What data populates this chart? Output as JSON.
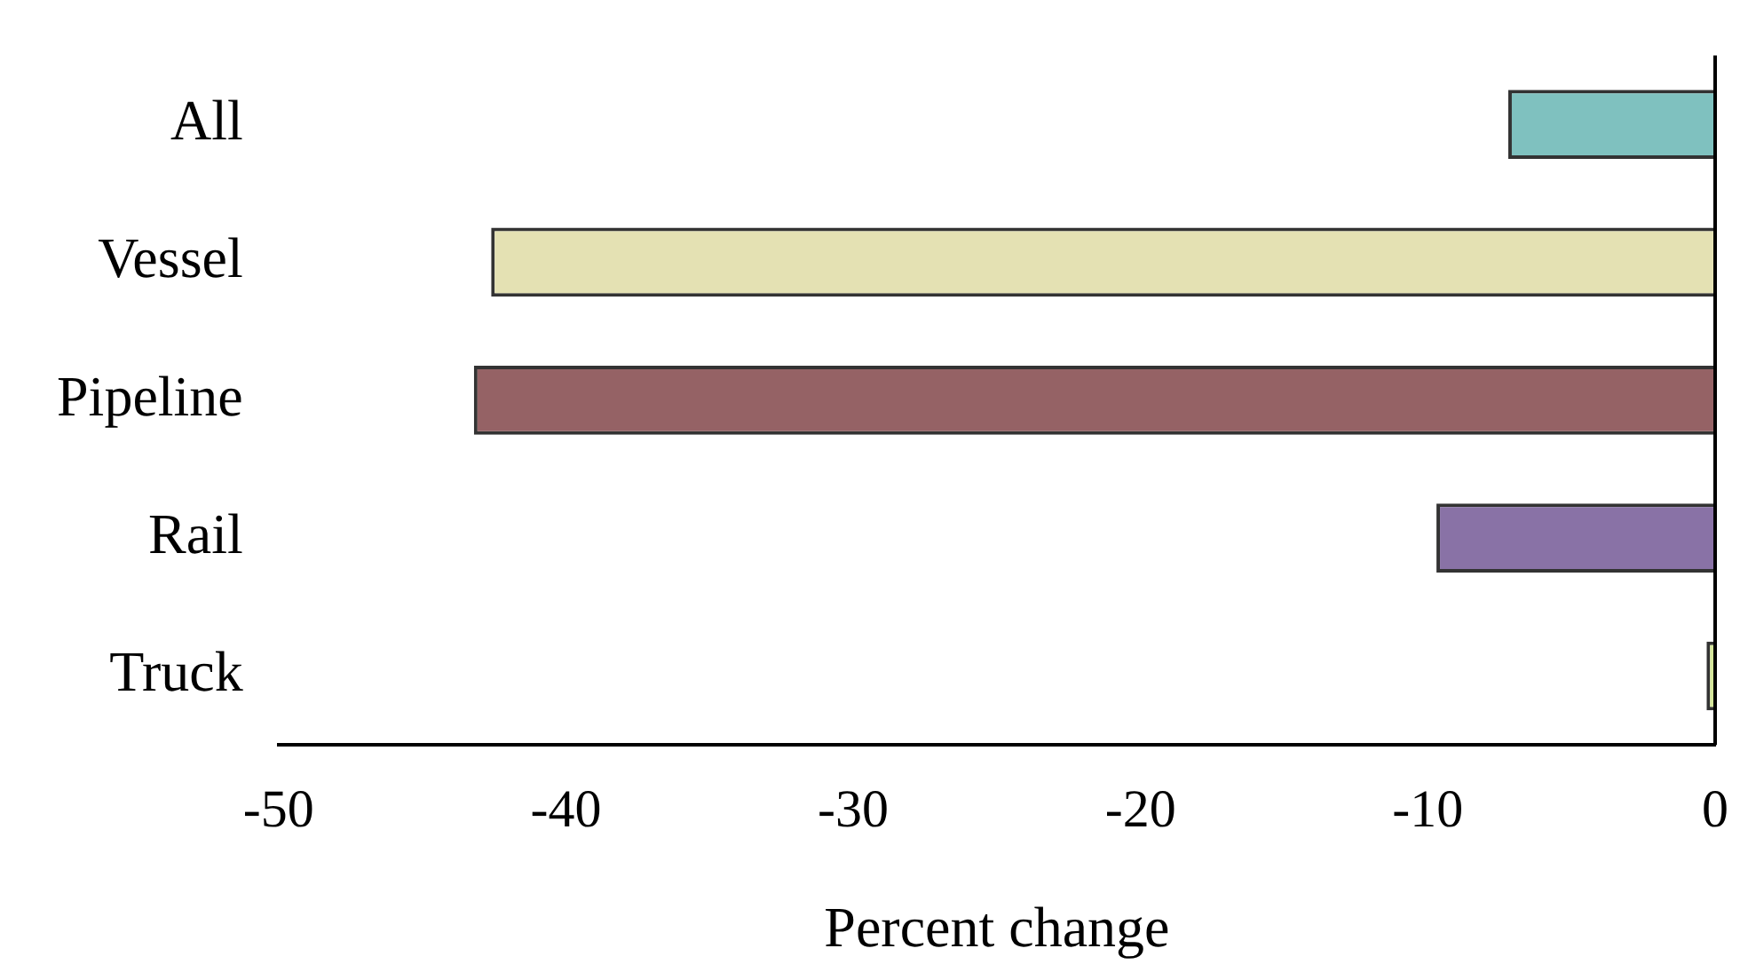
{
  "chart_data": {
    "type": "bar",
    "orientation": "horizontal",
    "xlabel": "Percent change",
    "categories": [
      "All",
      "Vessel",
      "Pipeline",
      "Rail",
      "Truck"
    ],
    "values": [
      -7.2,
      -42.6,
      -43.2,
      -9.7,
      -0.3
    ],
    "colors": [
      "#7fc1bf",
      "#e4e1b3",
      "#956265",
      "#8972a6",
      "#d5e69a"
    ],
    "xlim": [
      -50,
      0
    ],
    "xticks": [
      -50,
      -40,
      -30,
      -20,
      -10,
      0
    ],
    "grid": false,
    "legend": false
  }
}
